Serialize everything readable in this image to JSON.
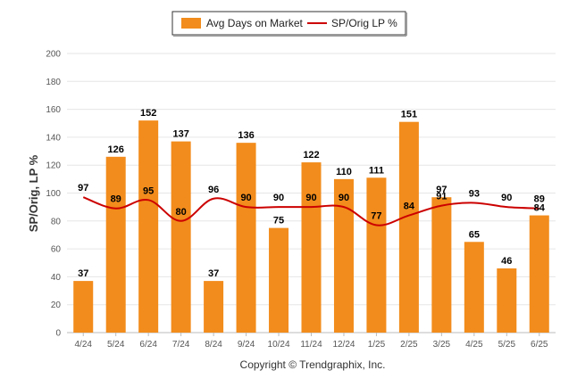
{
  "chart_data": {
    "type": "bar",
    "categories": [
      "4/24",
      "5/24",
      "6/24",
      "7/24",
      "8/24",
      "9/24",
      "10/24",
      "11/24",
      "12/24",
      "1/25",
      "2/25",
      "3/25",
      "4/25",
      "5/25",
      "6/25"
    ],
    "series": [
      {
        "name": "Avg Days on Market",
        "type": "bar",
        "color": "#f28c1c",
        "values": [
          37,
          126,
          152,
          137,
          37,
          136,
          75,
          122,
          110,
          111,
          151,
          97,
          65,
          46,
          84
        ]
      },
      {
        "name": "SP/Orig LP %",
        "type": "line",
        "color": "#cc0000",
        "values": [
          97,
          89,
          95,
          80,
          96,
          90,
          90,
          90,
          90,
          77,
          84,
          91,
          93,
          90,
          89
        ]
      }
    ],
    "ylabel": "SP/Orig, LP %",
    "ylim": [
      0,
      200
    ],
    "yticks": [
      0,
      20,
      40,
      60,
      80,
      100,
      120,
      140,
      160,
      180,
      200
    ],
    "grid": true,
    "legend_position": "top-center"
  },
  "footer": "Copyright © Trendgraphix, Inc."
}
